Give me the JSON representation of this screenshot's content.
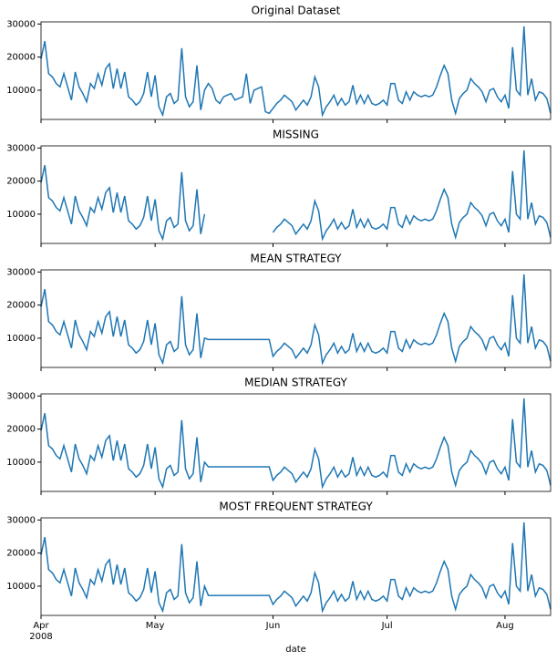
{
  "chart_data": [
    {
      "type": "line",
      "title": "Original Dataset",
      "color": "#1f77b4",
      "ylim": [
        1160,
        30640
      ],
      "yticks": [
        10000,
        20000,
        30000
      ],
      "values": [
        19500,
        24800,
        15000,
        14000,
        12000,
        11000,
        15000,
        11000,
        7000,
        15500,
        11000,
        9000,
        6500,
        12000,
        10500,
        15000,
        11500,
        16500,
        18000,
        10500,
        16500,
        10500,
        15500,
        8000,
        7000,
        5500,
        6500,
        9000,
        15500,
        8000,
        14500,
        5000,
        2500,
        8000,
        9000,
        6000,
        7000,
        22700,
        8000,
        5000,
        6500,
        17500,
        4000,
        10000,
        12000,
        10500,
        7000,
        6000,
        8000,
        8500,
        9000,
        7000,
        7500,
        8000,
        15000,
        6000,
        10000,
        10500,
        11000,
        3500,
        3000,
        4500,
        6000,
        7000,
        8500,
        7500,
        6500,
        4000,
        5500,
        7000,
        5500,
        8000,
        14000,
        11000,
        2500,
        5000,
        6500,
        8500,
        5500,
        7500,
        5500,
        6500,
        11500,
        6000,
        8500,
        6000,
        8500,
        6000,
        5500,
        6000,
        7000,
        5500,
        12000,
        12000,
        7000,
        6000,
        9500,
        7000,
        9500,
        8500,
        8000,
        8500,
        8000,
        8500,
        11000,
        14500,
        17500,
        15000,
        7000,
        3000,
        7500,
        9000,
        10000,
        13500,
        12000,
        11000,
        9500,
        6500,
        10000,
        10500,
        8000,
        6500,
        8500,
        4500,
        23000,
        10000,
        8500,
        29300,
        8500,
        13500,
        7000,
        9500,
        9000,
        7500,
        3000
      ]
    },
    {
      "type": "line",
      "title": "MISSING",
      "color": "#1f77b4",
      "ylim": [
        1160,
        30640
      ],
      "yticks": [
        10000,
        20000,
        30000
      ],
      "values": [
        19500,
        24800,
        15000,
        14000,
        12000,
        11000,
        15000,
        11000,
        7000,
        15500,
        11000,
        9000,
        6500,
        12000,
        10500,
        15000,
        11500,
        16500,
        18000,
        10500,
        16500,
        10500,
        15500,
        8000,
        7000,
        5500,
        6500,
        9000,
        15500,
        8000,
        14500,
        5000,
        2500,
        8000,
        9000,
        6000,
        7000,
        22700,
        8000,
        5000,
        6500,
        17500,
        4000,
        10000,
        null,
        null,
        null,
        null,
        null,
        null,
        null,
        null,
        null,
        null,
        null,
        null,
        null,
        null,
        null,
        null,
        null,
        4500,
        6000,
        7000,
        8500,
        7500,
        6500,
        4000,
        5500,
        7000,
        5500,
        8000,
        14000,
        11000,
        2500,
        5000,
        6500,
        8500,
        5500,
        7500,
        5500,
        6500,
        11500,
        6000,
        8500,
        6000,
        8500,
        6000,
        5500,
        6000,
        7000,
        5500,
        12000,
        12000,
        7000,
        6000,
        9500,
        7000,
        9500,
        8500,
        8000,
        8500,
        8000,
        8500,
        11000,
        14500,
        17500,
        15000,
        7000,
        3000,
        7500,
        9000,
        10000,
        13500,
        12000,
        11000,
        9500,
        6500,
        10000,
        10500,
        8000,
        6500,
        8500,
        4500,
        23000,
        10000,
        8500,
        29300,
        8500,
        13500,
        7000,
        9500,
        9000,
        7500,
        3000
      ]
    },
    {
      "type": "line",
      "title": "MEAN STRATEGY",
      "color": "#1f77b4",
      "ylim": [
        1160,
        30640
      ],
      "yticks": [
        10000,
        20000,
        30000
      ],
      "values": [
        19500,
        24800,
        15000,
        14000,
        12000,
        11000,
        15000,
        11000,
        7000,
        15500,
        11000,
        9000,
        6500,
        12000,
        10500,
        15000,
        11500,
        16500,
        18000,
        10500,
        16500,
        10500,
        15500,
        8000,
        7000,
        5500,
        6500,
        9000,
        15500,
        8000,
        14500,
        5000,
        2500,
        8000,
        9000,
        6000,
        7000,
        22700,
        8000,
        5000,
        6500,
        17500,
        4000,
        10000,
        9600,
        9600,
        9600,
        9600,
        9600,
        9600,
        9600,
        9600,
        9600,
        9600,
        9600,
        9600,
        9600,
        9600,
        9600,
        9600,
        9600,
        4500,
        6000,
        7000,
        8500,
        7500,
        6500,
        4000,
        5500,
        7000,
        5500,
        8000,
        14000,
        11000,
        2500,
        5000,
        6500,
        8500,
        5500,
        7500,
        5500,
        6500,
        11500,
        6000,
        8500,
        6000,
        8500,
        6000,
        5500,
        6000,
        7000,
        5500,
        12000,
        12000,
        7000,
        6000,
        9500,
        7000,
        9500,
        8500,
        8000,
        8500,
        8000,
        8500,
        11000,
        14500,
        17500,
        15000,
        7000,
        3000,
        7500,
        9000,
        10000,
        13500,
        12000,
        11000,
        9500,
        6500,
        10000,
        10500,
        8000,
        6500,
        8500,
        4500,
        23000,
        10000,
        8500,
        29300,
        8500,
        13500,
        7000,
        9500,
        9000,
        7500,
        3000
      ]
    },
    {
      "type": "line",
      "title": "MEDIAN STRATEGY",
      "color": "#1f77b4",
      "ylim": [
        1160,
        30640
      ],
      "yticks": [
        10000,
        20000,
        30000
      ],
      "values": [
        19500,
        24800,
        15000,
        14000,
        12000,
        11000,
        15000,
        11000,
        7000,
        15500,
        11000,
        9000,
        6500,
        12000,
        10500,
        15000,
        11500,
        16500,
        18000,
        10500,
        16500,
        10500,
        15500,
        8000,
        7000,
        5500,
        6500,
        9000,
        15500,
        8000,
        14500,
        5000,
        2500,
        8000,
        9000,
        6000,
        7000,
        22700,
        8000,
        5000,
        6500,
        17500,
        4000,
        10000,
        8600,
        8600,
        8600,
        8600,
        8600,
        8600,
        8600,
        8600,
        8600,
        8600,
        8600,
        8600,
        8600,
        8600,
        8600,
        8600,
        8600,
        4500,
        6000,
        7000,
        8500,
        7500,
        6500,
        4000,
        5500,
        7000,
        5500,
        8000,
        14000,
        11000,
        2500,
        5000,
        6500,
        8500,
        5500,
        7500,
        5500,
        6500,
        11500,
        6000,
        8500,
        6000,
        8500,
        6000,
        5500,
        6000,
        7000,
        5500,
        12000,
        12000,
        7000,
        6000,
        9500,
        7000,
        9500,
        8500,
        8000,
        8500,
        8000,
        8500,
        11000,
        14500,
        17500,
        15000,
        7000,
        3000,
        7500,
        9000,
        10000,
        13500,
        12000,
        11000,
        9500,
        6500,
        10000,
        10500,
        8000,
        6500,
        8500,
        4500,
        23000,
        10000,
        8500,
        29300,
        8500,
        13500,
        7000,
        9500,
        9000,
        7500,
        3000
      ]
    },
    {
      "type": "line",
      "title": "MOST FREQUENT STRATEGY",
      "color": "#1f77b4",
      "ylim": [
        1160,
        30640
      ],
      "yticks": [
        10000,
        20000,
        30000
      ],
      "xlabel": "date",
      "year_label": "2008",
      "categories": [
        "Apr",
        null,
        null,
        null,
        null,
        null,
        null,
        null,
        null,
        null,
        null,
        null,
        null,
        null,
        null,
        null,
        null,
        null,
        null,
        null,
        null,
        null,
        null,
        null,
        null,
        null,
        null,
        null,
        null,
        null,
        "May",
        null,
        null,
        null,
        null,
        null,
        null,
        null,
        null,
        null,
        null,
        null,
        null,
        null,
        null,
        null,
        null,
        null,
        null,
        null,
        null,
        null,
        null,
        null,
        null,
        null,
        null,
        null,
        null,
        null,
        null,
        "Jun",
        null,
        null,
        null,
        null,
        null,
        null,
        null,
        null,
        null,
        null,
        null,
        null,
        null,
        null,
        null,
        null,
        null,
        null,
        null,
        null,
        null,
        null,
        null,
        null,
        null,
        null,
        null,
        null,
        null,
        "Jul",
        null,
        null,
        null,
        null,
        null,
        null,
        null,
        null,
        null,
        null,
        null,
        null,
        null,
        null,
        null,
        null,
        null,
        null,
        null,
        null,
        null,
        null,
        null,
        null,
        null,
        null,
        null,
        null,
        null,
        null,
        "Aug",
        null,
        null,
        null,
        null,
        null,
        null,
        null,
        null,
        null,
        null,
        null,
        null
      ],
      "values": [
        19500,
        24800,
        15000,
        14000,
        12000,
        11000,
        15000,
        11000,
        7000,
        15500,
        11000,
        9000,
        6500,
        12000,
        10500,
        15000,
        11500,
        16500,
        18000,
        10500,
        16500,
        10500,
        15500,
        8000,
        7000,
        5500,
        6500,
        9000,
        15500,
        8000,
        14500,
        5000,
        2500,
        8000,
        9000,
        6000,
        7000,
        22700,
        8000,
        5000,
        6500,
        17500,
        4000,
        10000,
        7200,
        7200,
        7200,
        7200,
        7200,
        7200,
        7200,
        7200,
        7200,
        7200,
        7200,
        7200,
        7200,
        7200,
        7200,
        7200,
        7200,
        4500,
        6000,
        7000,
        8500,
        7500,
        6500,
        4000,
        5500,
        7000,
        5500,
        8000,
        14000,
        11000,
        2500,
        5000,
        6500,
        8500,
        5500,
        7500,
        5500,
        6500,
        11500,
        6000,
        8500,
        6000,
        8500,
        6000,
        5500,
        6000,
        7000,
        5500,
        12000,
        12000,
        7000,
        6000,
        9500,
        7000,
        9500,
        8500,
        8000,
        8500,
        8000,
        8500,
        11000,
        14500,
        17500,
        15000,
        7000,
        3000,
        7500,
        9000,
        10000,
        13500,
        12000,
        11000,
        9500,
        6500,
        10000,
        10500,
        8000,
        6500,
        8500,
        4500,
        23000,
        10000,
        8500,
        29300,
        8500,
        13500,
        7000,
        9500,
        9000,
        7500,
        3000
      ]
    }
  ]
}
